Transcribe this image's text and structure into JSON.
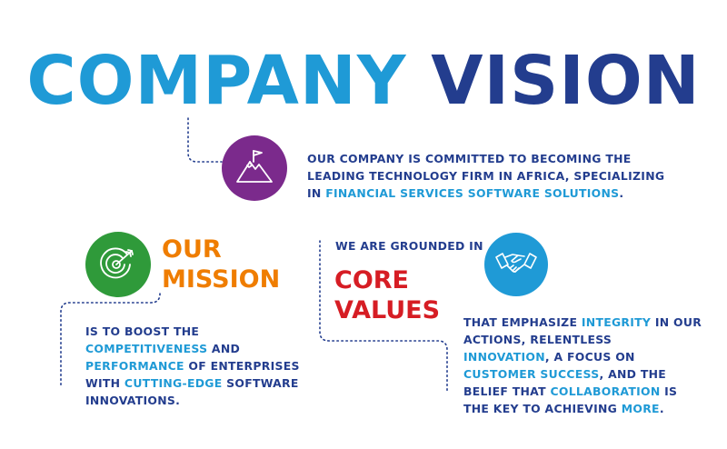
{
  "title": {
    "word1": "COMPANY",
    "word2": "VISION"
  },
  "vision": {
    "icon": "mountain-flag-icon",
    "line1": "OUR COMPANY IS COMMITTED TO BECOMING THE",
    "line2": "LEADING TECHNOLOGY FIRM IN AFRICA, SPECIALIZING",
    "line3_a": "IN ",
    "line3_b": "FINANCIAL SERVICES SOFTWARE SOLUTIONS",
    "line3_c": "."
  },
  "mission": {
    "icon": "target-icon",
    "heading1": "OUR",
    "heading2": "MISSION",
    "l1": "IS TO BOOST THE",
    "l2_a": "COMPETITIVENESS",
    "l2_b": " AND",
    "l3_a": "PERFORMANCE",
    "l3_b": " OF ENTERPRISES",
    "l4_a": "WITH ",
    "l4_b": "CUTTING-EDGE",
    "l4_c": " SOFTWARE",
    "l5": "INNOVATIONS."
  },
  "values": {
    "icon": "handshake-icon",
    "intro": "WE ARE GROUNDED IN",
    "heading1": "CORE",
    "heading2": "VALUES",
    "l1_a": "THAT EMPHASIZE ",
    "l1_b": "INTEGRITY",
    "l1_c": " IN OUR",
    "l2": "ACTIONS, RELENTLESS",
    "l3_a": "INNOVATION",
    "l3_b": ", A FOCUS ON",
    "l4_a": "CUSTOMER SUCCESS",
    "l4_b": ", AND THE",
    "l5_a": "BELIEF THAT ",
    "l5_b": "COLLABORATION",
    "l5_c": " IS",
    "l6_a": "THE KEY TO ACHIEVING ",
    "l6_b": "MORE",
    "l6_c": "."
  },
  "colors": {
    "blue": "#1f9ad6",
    "navy": "#233d8e",
    "purple": "#7b2a8c",
    "green": "#2f9a3a",
    "orange": "#ef7d00",
    "red": "#d61d24"
  }
}
